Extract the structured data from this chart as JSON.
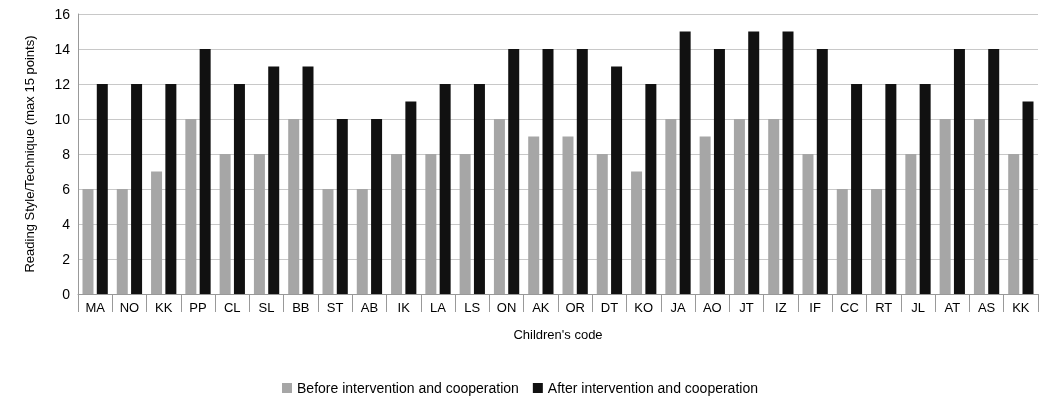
{
  "chart_data": {
    "type": "bar",
    "xlabel": "Children's code",
    "ylabel": "Reading Style/Technique (max 15 points)",
    "categories": [
      "MA",
      "NO",
      "KK",
      "PP",
      "CL",
      "SL",
      "BB",
      "ST",
      "AB",
      "IK",
      "LA",
      "LS",
      "ON",
      "AK",
      "OR",
      "DT",
      "KO",
      "JA",
      "AO",
      "JT",
      "IZ",
      "IF",
      "CC",
      "RT",
      "JL",
      "AT",
      "AS",
      "KK"
    ],
    "series": [
      {
        "name": "Before intervention and cooperation",
        "color": "#a6a6a6",
        "values": [
          6,
          6,
          7,
          10,
          8,
          8,
          10,
          6,
          6,
          8,
          8,
          8,
          10,
          9,
          9,
          8,
          7,
          10,
          9,
          10,
          10,
          8,
          6,
          6,
          8,
          10,
          10,
          8
        ]
      },
      {
        "name": "After intervention and cooperation",
        "color": "#111111",
        "values": [
          12,
          12,
          12,
          14,
          12,
          13,
          13,
          10,
          10,
          11,
          12,
          12,
          14,
          14,
          14,
          13,
          12,
          15,
          14,
          15,
          15,
          14,
          12,
          12,
          12,
          14,
          14,
          11
        ]
      }
    ],
    "ylim": [
      0,
      16
    ],
    "yticks": [
      0,
      2,
      4,
      6,
      8,
      10,
      12,
      14,
      16
    ],
    "grid": "y",
    "legend": "bottom"
  }
}
